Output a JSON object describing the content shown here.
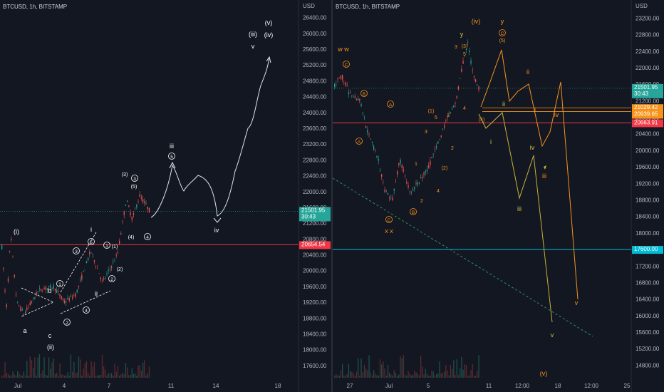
{
  "left": {
    "symbol": "BTCUSD, 1h, BITSTAMP",
    "currency": "USD",
    "ylim": [
      17400,
      26700
    ],
    "yticks": [
      "26400.00",
      "26000.00",
      "25600.00",
      "25200.00",
      "24800.00",
      "24400.00",
      "24000.00",
      "23600.00",
      "23200.00",
      "22800.00",
      "22400.00",
      "22000.00",
      "21600.00",
      "21200.00",
      "20800.00",
      "20400.00",
      "20000.00",
      "19600.00",
      "19200.00",
      "18800.00",
      "18400.00",
      "18000.00",
      "17600.00"
    ],
    "xticks": [
      "Jul",
      "4",
      "7",
      "11",
      "14",
      "18"
    ],
    "price_badge": {
      "value": "21501.95",
      "timer": "30:43",
      "color": "#26a69a"
    },
    "level_badge": {
      "value": "20654.54",
      "color": "#f23645"
    },
    "labels": [
      "(i)",
      "a",
      "b",
      "c",
      "(ii)",
      "i",
      "ii",
      "iii",
      "iv",
      "v",
      "(iii)",
      "(iv)",
      "(v)",
      "1",
      "2",
      "3",
      "4",
      "5",
      "(1)",
      "(2)",
      "(3)",
      "(4)",
      "(5)"
    ]
  },
  "right": {
    "symbol": "BTCUSD, 1h, BITSTAMP",
    "currency": "USD",
    "ylim": [
      14600,
      23500
    ],
    "yticks": [
      "23200.00",
      "22800.00",
      "22400.00",
      "22000.00",
      "21600.00",
      "21200.00",
      "20800.00",
      "20400.00",
      "20000.00",
      "19600.00",
      "19200.00",
      "18800.00",
      "18400.00",
      "18000.00",
      "17600.00",
      "17200.00",
      "16800.00",
      "16400.00",
      "16000.00",
      "15600.00",
      "15200.00",
      "14800.00"
    ],
    "xticks": [
      "27",
      "Jul",
      "5",
      "11",
      "12:00",
      "18",
      "12:00",
      "25"
    ],
    "price_badge": {
      "value": "21501.95",
      "timer": "30:43",
      "color": "#26a69a"
    },
    "level_badges": [
      {
        "value": "21029.42",
        "color": "#f7931a"
      },
      {
        "value": "20939.65",
        "color": "#f7931a"
      },
      {
        "value": "20663.91",
        "color": "#f23645"
      },
      {
        "value": "17600.00",
        "color": "#00bcd4"
      }
    ],
    "labels": [
      "w w",
      "x x",
      "y",
      "(iv)",
      "(v)",
      "A",
      "B",
      "C",
      "(1)",
      "(2)",
      "(3)",
      "(4)",
      "(5)",
      "1",
      "2",
      "3",
      "4",
      "5",
      "i",
      "ii",
      "iii",
      "iv",
      "v"
    ]
  }
}
